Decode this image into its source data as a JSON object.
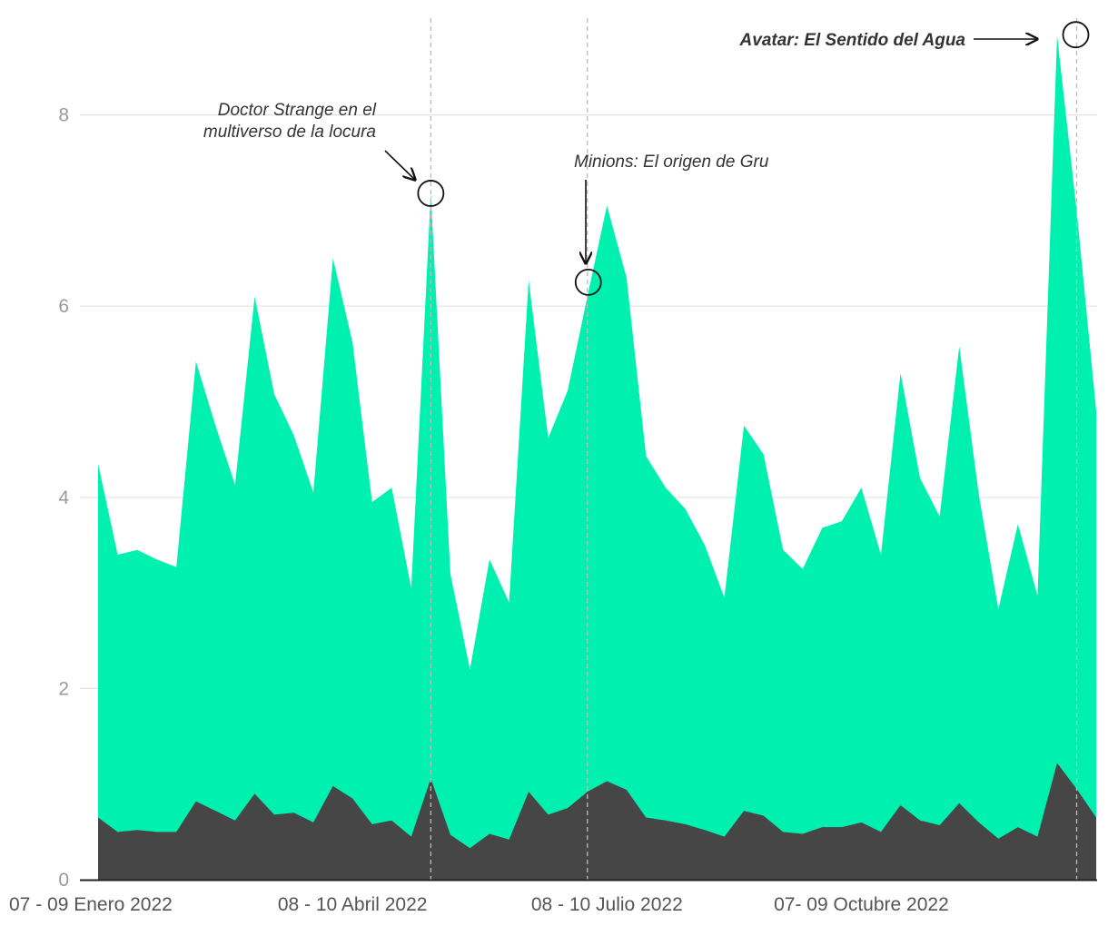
{
  "colors": {
    "total_area": "#00F0B0",
    "sub_area": "#464646",
    "grid": "#e2e2e2",
    "axis": "#222222",
    "reference_line": "#bbbbbb"
  },
  "chart_data": {
    "type": "area",
    "title": "",
    "xlabel": "",
    "ylabel": "",
    "ylim": [
      0,
      9
    ],
    "y_ticks": [
      0,
      2,
      4,
      6,
      8
    ],
    "grid": true,
    "legend": "none",
    "x_tick_labels": [
      {
        "index": 0,
        "label": "07 - 09 Enero 2022"
      },
      {
        "index": 13,
        "label": "08 - 10 Abril 2022"
      },
      {
        "index": 26,
        "label": "08 - 10 Julio 2022"
      },
      {
        "index": 39,
        "label": "07- 09 Octubre 2022"
      }
    ],
    "series": [
      {
        "values": [
          4.35,
          3.4,
          3.45,
          3.35,
          3.27,
          5.42,
          4.75,
          4.13,
          6.1,
          5.08,
          4.65,
          4.05,
          6.5,
          5.62,
          3.95,
          4.1,
          3.05,
          7.18,
          3.2,
          2.2,
          3.35,
          2.9,
          6.27,
          4.62,
          5.12,
          6.1,
          7.05,
          6.3,
          4.43,
          4.1,
          3.88,
          3.5,
          2.95,
          4.75,
          4.45,
          3.45,
          3.25,
          3.68,
          3.75,
          4.1,
          3.4,
          5.3,
          4.2,
          3.8,
          5.58,
          4.03,
          2.83,
          3.72,
          2.97,
          8.83,
          7.0,
          4.9
        ]
      },
      {
        "values": [
          0.65,
          0.5,
          0.52,
          0.5,
          0.5,
          0.82,
          0.72,
          0.62,
          0.9,
          0.68,
          0.7,
          0.6,
          0.98,
          0.85,
          0.58,
          0.62,
          0.45,
          1.06,
          0.47,
          0.33,
          0.48,
          0.42,
          0.92,
          0.68,
          0.75,
          0.92,
          1.03,
          0.94,
          0.65,
          0.62,
          0.58,
          0.52,
          0.45,
          0.72,
          0.67,
          0.5,
          0.48,
          0.55,
          0.55,
          0.6,
          0.5,
          0.78,
          0.62,
          0.57,
          0.8,
          0.6,
          0.43,
          0.55,
          0.45,
          1.22,
          0.95,
          0.65
        ]
      }
    ],
    "annotations": [
      {
        "text_lines": [
          "Doctor Strange en el",
          "multiverso de la locura"
        ],
        "index": 17,
        "value": 7.18,
        "bold": false
      },
      {
        "text_lines": [
          "Minions: El origen de Gru"
        ],
        "index": 25,
        "value": 6.25,
        "bold": false
      },
      {
        "text_lines": [
          "Avatar: El Sentido del Agua"
        ],
        "index": 50,
        "value": 8.83,
        "bold": true
      }
    ],
    "reference_lines_at_index": [
      17,
      25,
      50
    ]
  }
}
